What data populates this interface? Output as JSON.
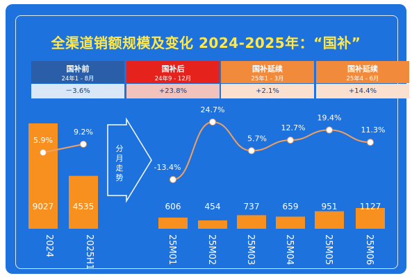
{
  "title": "全渠道销额规模及变化 2024-2025年：“国补”",
  "phases": [
    {
      "name": "国补前",
      "range": "24年1 - 8月",
      "value": "－3.6%"
    },
    {
      "name": "国补后",
      "range": "24年9 - 12月",
      "value": "+23.8%"
    },
    {
      "name": "国补延续",
      "range": "25年1 - 3月",
      "value": "+2.1%"
    },
    {
      "name": "国补延续",
      "range": "25年4 - 6月",
      "value": "+14.4%"
    }
  ],
  "trend_label": [
    "分",
    "月",
    "走",
    "势"
  ],
  "colors": {
    "bar": "#f7901e",
    "line": "#f0a060",
    "frame": "#1e72dd",
    "title": "#ffe84a",
    "phase1": "#2a5ea8",
    "phase2": "#e5221b",
    "phase3": "#f28a3c",
    "phase4": "#f28a3c"
  },
  "chart_data": [
    {
      "type": "bar",
      "categories": [
        "2024",
        "2025H1"
      ],
      "values": [
        9027,
        4535
      ],
      "line_values": [
        5.9,
        9.2
      ],
      "line_labels": [
        "5.9%",
        "9.2%"
      ]
    },
    {
      "type": "bar",
      "categories": [
        "25M01",
        "25M02",
        "25M03",
        "25M04",
        "25M05",
        "25M06"
      ],
      "values": [
        606,
        454,
        737,
        659,
        951,
        1127
      ],
      "line_values": [
        -13.4,
        24.7,
        5.7,
        12.7,
        19.4,
        11.3
      ],
      "line_labels": [
        "-13.4%",
        "24.7%",
        "5.7%",
        "12.7%",
        "19.4%",
        "11.3%"
      ]
    }
  ]
}
